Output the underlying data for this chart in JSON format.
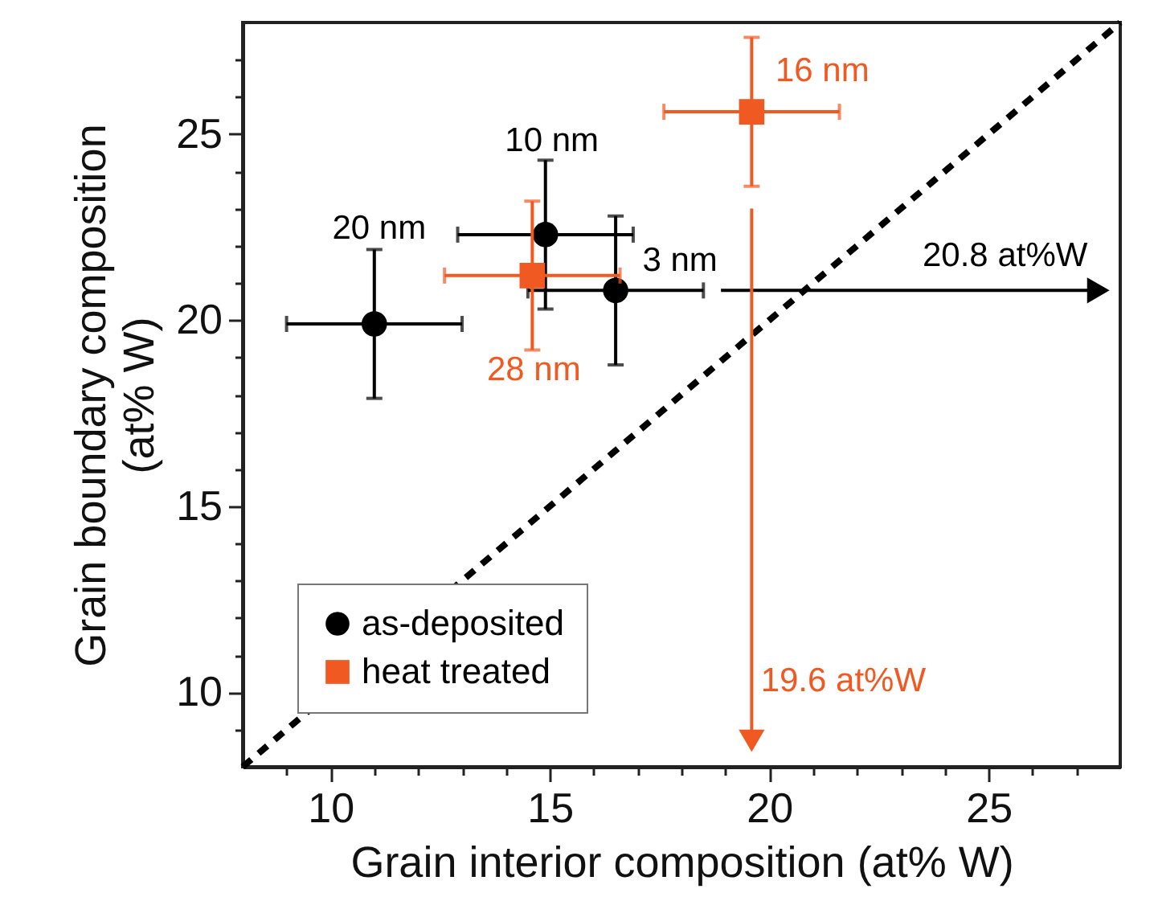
{
  "chart_data": {
    "type": "scatter",
    "xlabel": "Grain interior composition (at% W)",
    "ylabel": "Grain boundary composition\n(at% W)",
    "xlim": [
      8,
      28
    ],
    "ylim": [
      8,
      28
    ],
    "xticks": [
      {
        "value": 9,
        "label": null
      },
      10,
      {
        "value": 11,
        "label": null
      },
      {
        "value": 12,
        "label": null
      },
      {
        "value": 13,
        "label": null
      },
      {
        "value": 14,
        "label": null
      },
      15,
      {
        "value": 16,
        "label": null
      },
      {
        "value": 17,
        "label": null
      },
      {
        "value": 18,
        "label": null
      },
      {
        "value": 19,
        "label": null
      },
      20,
      {
        "value": 21,
        "label": null
      },
      {
        "value": 22,
        "label": null
      },
      {
        "value": 23,
        "label": null
      },
      {
        "value": 24,
        "label": null
      },
      25,
      {
        "value": 26,
        "label": null
      },
      {
        "value": 27,
        "label": null
      }
    ],
    "yticks": [
      {
        "value": 9,
        "label": null
      },
      10,
      {
        "value": 11,
        "label": null
      },
      {
        "value": 12,
        "label": null
      },
      {
        "value": 13,
        "label": null
      },
      {
        "value": 14,
        "label": null
      },
      15,
      {
        "value": 16,
        "label": null
      },
      {
        "value": 17,
        "label": null
      },
      {
        "value": 18,
        "label": null
      },
      {
        "value": 19,
        "label": null
      },
      20,
      {
        "value": 21,
        "label": null
      },
      {
        "value": 22,
        "label": null
      },
      {
        "value": 23,
        "label": null
      },
      {
        "value": 24,
        "label": null
      },
      25,
      {
        "value": 26,
        "label": null
      },
      {
        "value": 27,
        "label": null
      }
    ],
    "grid": false,
    "legend": "bottom left",
    "series": [
      {
        "type": "line",
        "color": "#000000",
        "line_style": "dashed",
        "x": [
          8,
          28
        ],
        "values": [
          8,
          28
        ]
      },
      {
        "type": "line",
        "color": "#000000",
        "marker": "triangle",
        "x": [
          18.9,
          27.5
        ],
        "values": [
          20.8,
          20.8
        ]
      },
      {
        "type": "line",
        "color": "#f05a22",
        "marker": "triangle",
        "x": [
          19.6,
          19.6
        ],
        "values": [
          23.0,
          8.7
        ]
      },
      {
        "name": "as-deposited",
        "type": "scatter",
        "marker": "circle",
        "color": "#000000",
        "x": [
          11,
          14.9,
          16.5
        ],
        "values": [
          19.9,
          22.3,
          20.8
        ],
        "errors": [
          2,
          2,
          2
        ],
        "xerrors": [
          2,
          2,
          2
        ]
      },
      {
        "name": "heat treated",
        "type": "scatter",
        "marker": "square",
        "color": "#f05a22",
        "x": [
          14.6,
          19.6
        ],
        "values": [
          21.2,
          25.6
        ],
        "errors": [
          2,
          2
        ],
        "xerrors": [
          2,
          2
        ]
      }
    ],
    "annotations": [
      {
        "text": "20 nm",
        "x": 11,
        "y": 19.9
      },
      {
        "text": "10 nm",
        "x": 14.9,
        "y": 22.3
      },
      {
        "text": "3 nm",
        "x": 16.5,
        "y": 20.8
      },
      {
        "text": "28 nm",
        "x": 14.6,
        "y": 21.2
      },
      {
        "text": "16 nm",
        "x": 19.6,
        "y": 25.6
      },
      {
        "text": "20.8 at%W",
        "x": 27.5,
        "y": 20.8
      },
      {
        "text": "19.6 at%W",
        "x": 19.6,
        "y": 8.7
      }
    ]
  }
}
